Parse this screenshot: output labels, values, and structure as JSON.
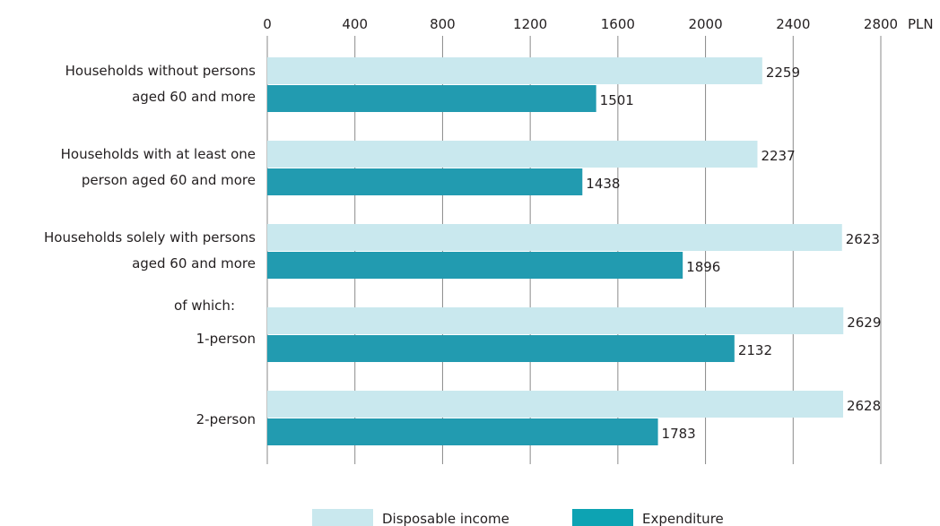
{
  "chart_data": {
    "type": "bar",
    "orientation": "horizontal",
    "unit": "PLN",
    "xlim": [
      0,
      2800
    ],
    "ticks": [
      0,
      400,
      800,
      1200,
      1600,
      2000,
      2400,
      2800
    ],
    "grid": true,
    "legend_position": "bottom",
    "categories": [
      [
        "Households without persons",
        "aged 60 and more"
      ],
      [
        "Households with at least one",
        "person aged 60 and more"
      ],
      [
        "Households solely with persons",
        "aged 60 and more"
      ],
      [
        "1-person"
      ],
      [
        "2-person"
      ]
    ],
    "subheading": "of which:",
    "series": [
      {
        "name": "Disposable income",
        "color": "#c9e8ee",
        "values": [
          2259,
          2237,
          2623,
          2629,
          2628
        ]
      },
      {
        "name": "Expenditure",
        "color": "#229bb0",
        "values": [
          1501,
          1438,
          1896,
          2132,
          1783
        ]
      }
    ]
  }
}
